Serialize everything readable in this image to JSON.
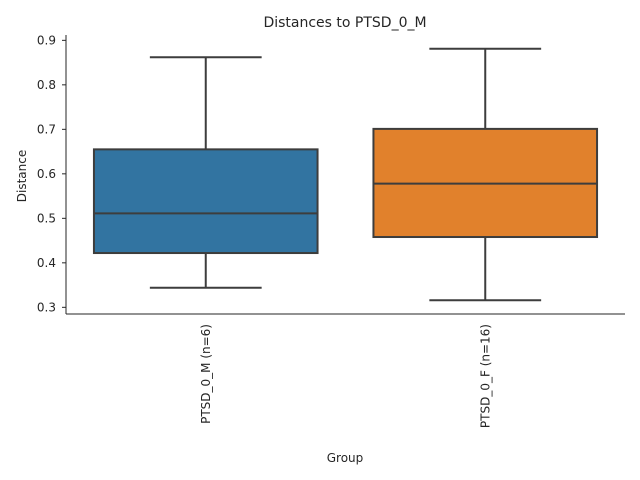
{
  "chart_data": {
    "type": "box",
    "title": "Distances to PTSD_0_M",
    "xlabel": "Group",
    "ylabel": "Distance",
    "ylim": [
      0.285,
      0.912
    ],
    "yticks": [
      0.3,
      0.4,
      0.5,
      0.6,
      0.7,
      0.8,
      0.9
    ],
    "ytick_labels": [
      "0.3",
      "0.4",
      "0.5",
      "0.6",
      "0.7",
      "0.8",
      "0.9"
    ],
    "grid": false,
    "categories": [
      "PTSD_0_M (n=6)",
      "PTSD_0_F (n=16)"
    ],
    "boxes": [
      {
        "category": "PTSD_0_M (n=6)",
        "whisker_low": 0.344,
        "q1": 0.422,
        "median": 0.511,
        "q3": 0.655,
        "whisker_high": 0.862,
        "color": "#3274a1"
      },
      {
        "category": "PTSD_0_F (n=16)",
        "whisker_low": 0.316,
        "q1": 0.458,
        "median": 0.578,
        "q3": 0.701,
        "whisker_high": 0.881,
        "color": "#e1812c"
      }
    ]
  }
}
